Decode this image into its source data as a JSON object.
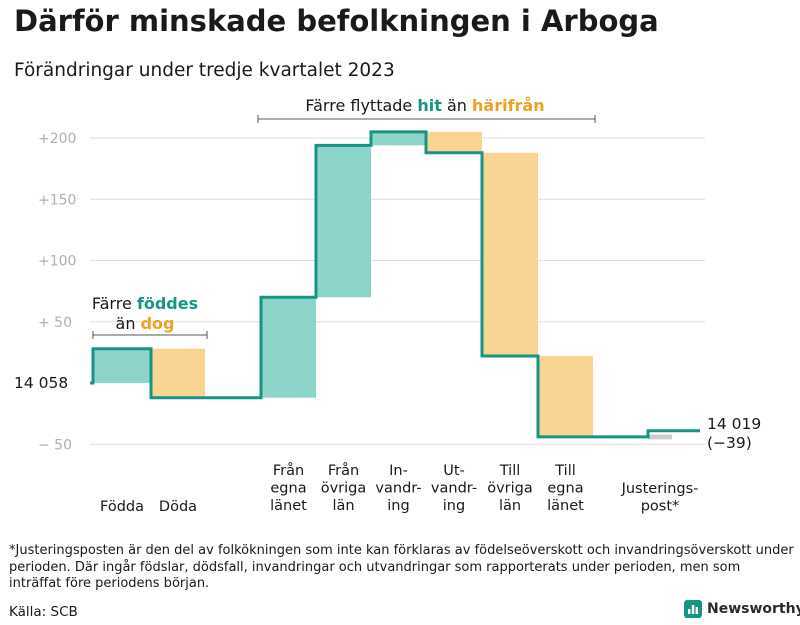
{
  "title": "Därför minskade befolkningen i Arboga",
  "subtitle": "Förändringar under tredje kvartalet 2023",
  "footnote": "*Justeringsposten är den del av folkökningen som inte kan förklaras av födelseöverskott och invandringsöverskott under perioden. Där ingår födslar, dödsfall, invandringar och utvandringar som rapporterats under perioden, men som inträffat före periodens början.",
  "source": "Källa: SCB",
  "logo_text": "Newsworthy",
  "colors": {
    "positive": "#8dd5cb",
    "negative": "#fad493",
    "line": "#169585",
    "adjust": "#cccccc",
    "positive_text": "#169585",
    "negative_text": "#f0a020"
  },
  "chart_data": {
    "type": "waterfall",
    "start_label": "14  058",
    "start_value": 14058,
    "end_label": "14 019",
    "end_change_label": "(−39)",
    "end_value": 14019,
    "y_baseline": 14058,
    "ylim": [
      -55,
      210
    ],
    "y_ticks": [
      {
        "value": 200,
        "label": "+200"
      },
      {
        "value": 150,
        "label": "+150"
      },
      {
        "value": 100,
        "label": "+100"
      },
      {
        "value": 50,
        "label": "+  50"
      },
      {
        "value": -50,
        "label": "−  50"
      }
    ],
    "steps": [
      {
        "label": [
          "Födda"
        ],
        "change": 28,
        "kind": "positive"
      },
      {
        "label": [
          "Döda"
        ],
        "change": -40,
        "kind": "negative"
      },
      {
        "label": [
          "Från",
          "egna",
          "länet"
        ],
        "change": 82,
        "kind": "positive"
      },
      {
        "label": [
          "Från",
          "övriga",
          "län"
        ],
        "change": 124,
        "kind": "positive"
      },
      {
        "label": [
          "In-",
          "vandr-",
          "ing"
        ],
        "change": 11,
        "kind": "positive"
      },
      {
        "label": [
          "Ut-",
          "vandr-",
          "ing"
        ],
        "change": -17,
        "kind": "negative"
      },
      {
        "label": [
          "Till",
          "övriga",
          "län"
        ],
        "change": -166,
        "kind": "negative"
      },
      {
        "label": [
          "Till",
          "egna",
          "länet"
        ],
        "change": -66,
        "kind": "negative"
      },
      {
        "label": [
          "Justerings-",
          "post*"
        ],
        "change": 5,
        "kind": "adjust"
      }
    ],
    "annotations": [
      {
        "lines": [
          [
            {
              "t": "Färre ",
              "c": "text"
            },
            {
              "t": "föddes",
              "c": "positive"
            }
          ],
          [
            {
              "t": "än ",
              "c": "text"
            },
            {
              "t": "dog",
              "c": "negative"
            }
          ]
        ]
      },
      {
        "lines": [
          [
            {
              "t": "Färre flyttade ",
              "c": "text"
            },
            {
              "t": "hit",
              "c": "positive"
            },
            {
              "t": " än ",
              "c": "text"
            },
            {
              "t": "härifrån",
              "c": "negative"
            }
          ]
        ]
      }
    ]
  }
}
